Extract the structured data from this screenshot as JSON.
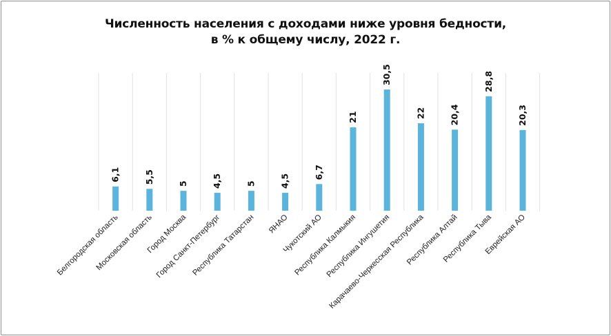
{
  "chart_data": {
    "type": "bar",
    "title_lines": [
      "Численность населения с доходами ниже уровня бедности,",
      "в % к общему числу, 2022 г."
    ],
    "categories": [
      "Белгородская область",
      "Московская  область",
      "Город Москва",
      "Город Санкт-Петербург",
      "Республика Татарстан",
      "ЯНАО",
      "Чукотский АО",
      "Республика Калмыкия",
      "Республика Ингушетия",
      "Карачаево-Черкесская Республика",
      "Республика Алтай",
      "Республика Тыва",
      "Еврейская АО"
    ],
    "values": [
      6.1,
      5.5,
      5,
      4.5,
      5,
      4.5,
      6.7,
      21,
      30.5,
      22,
      20.4,
      28.8,
      20.3
    ],
    "value_labels": [
      "6,1",
      "5,5",
      "5",
      "4,5",
      "5",
      "4,5",
      "6,7",
      "21",
      "30,5",
      "22",
      "20,4",
      "28,8",
      "20,3"
    ],
    "ylim": [
      0,
      30.5
    ],
    "grid": "vertical separators between categories",
    "legend": "none",
    "bar_color": "#5ab4db",
    "grid_color": "#e2e2e2"
  }
}
